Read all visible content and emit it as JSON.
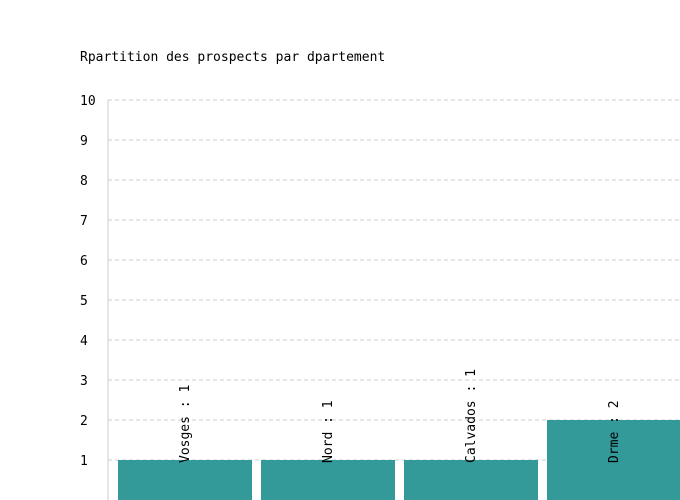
{
  "chart_data": {
    "type": "bar",
    "title": "Rpartition des prospects par dpartement",
    "xlabel": "",
    "ylabel": "",
    "categories": [
      "Vosges",
      "Nord",
      "Calvados",
      "Drme"
    ],
    "values": [
      1,
      1,
      1,
      2
    ],
    "bar_labels": [
      "Vosges : 1",
      "Nord : 1",
      "Calvados : 1",
      "Drme : 2"
    ],
    "ylim": [
      0,
      10
    ],
    "yticks": [
      "1",
      "2",
      "3",
      "4",
      "5",
      "6",
      "7",
      "8",
      "9",
      "10"
    ],
    "grid": true,
    "legend": "none",
    "bar_color": "#339a99",
    "grid_color": "#cccccc",
    "axis_color": "#cccccc"
  }
}
